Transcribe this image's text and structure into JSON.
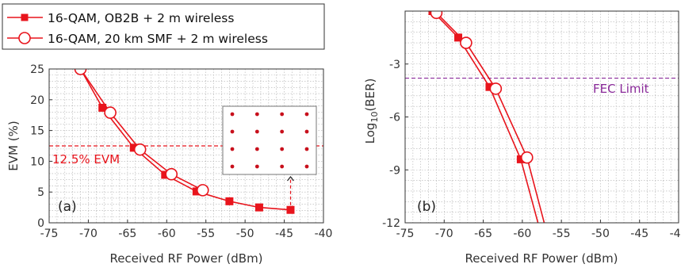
{
  "colors": {
    "series": "#e8141c",
    "fec": "#8a2a9a",
    "grid": "#b0b0b0",
    "axis": "#333333"
  },
  "legend": {
    "items": [
      {
        "label": "16-QAM, OB2B + 2 m wireless",
        "marker": "filled-square"
      },
      {
        "label": "16-QAM, 20 km SMF + 2 m wireless",
        "marker": "open-circle"
      }
    ]
  },
  "chart_data": [
    {
      "type": "line",
      "panel_label": "(a)",
      "xlabel": "Received RF Power (dBm)",
      "ylabel": "EVM (%)",
      "xlim": [
        -75,
        -40
      ],
      "ylim": [
        0,
        25
      ],
      "xticks": [
        -75,
        -70,
        -65,
        -60,
        -55,
        -50,
        -45,
        -40
      ],
      "yticks": [
        0,
        5,
        10,
        15,
        20,
        25
      ],
      "grid": true,
      "series": [
        {
          "name": "16-QAM, OB2B + 2 m wireless",
          "marker": "filled-square",
          "x": [
            -71,
            -68.2,
            -64.2,
            -60.2,
            -56.2,
            -52,
            -48.2,
            -44.2
          ],
          "y": [
            25,
            18.7,
            12.2,
            7.8,
            5.1,
            3.5,
            2.5,
            2.1
          ]
        },
        {
          "name": "16-QAM, 20 km SMF + 2 m wireless",
          "marker": "open-circle",
          "x": [
            -71,
            -67.2,
            -63.4,
            -59.4,
            -55.4
          ],
          "y": [
            25,
            17.9,
            11.9,
            7.9,
            5.3
          ]
        }
      ],
      "threshold": {
        "y": 12.5,
        "label": "12.5% EVM"
      },
      "inset": {
        "description": "constellation",
        "rows": 4,
        "cols": 4
      }
    },
    {
      "type": "line",
      "panel_label": "(b)",
      "xlabel": "Received RF Power (dBm)",
      "ylabel_main": "Log",
      "ylabel_sub": "10",
      "ylabel_tail": "(BER)",
      "xlim": [
        -75,
        -40
      ],
      "ylim": [
        -12,
        0
      ],
      "xticks": [
        -75,
        -70,
        -65,
        -60,
        -55,
        -50,
        -45,
        -40
      ],
      "yticks": [
        -3,
        -6,
        -9,
        -12
      ],
      "grid": true,
      "series": [
        {
          "name": "16-QAM, OB2B + 2 m wireless",
          "marker": "filled-square",
          "x": [
            -71.5,
            -68.2,
            -64.2,
            -60.2,
            -58
          ],
          "y": [
            0,
            -1.5,
            -4.3,
            -8.4,
            -12
          ]
        },
        {
          "name": "16-QAM, 20 km SMF + 2 m wireless",
          "marker": "open-circle",
          "x": [
            -71,
            -67.2,
            -63.4,
            -59.4,
            -57.2
          ],
          "y": [
            -0.1,
            -1.8,
            -4.4,
            -8.3,
            -12
          ]
        }
      ],
      "threshold": {
        "y": -3.8,
        "label": "FEC Limit"
      }
    }
  ]
}
